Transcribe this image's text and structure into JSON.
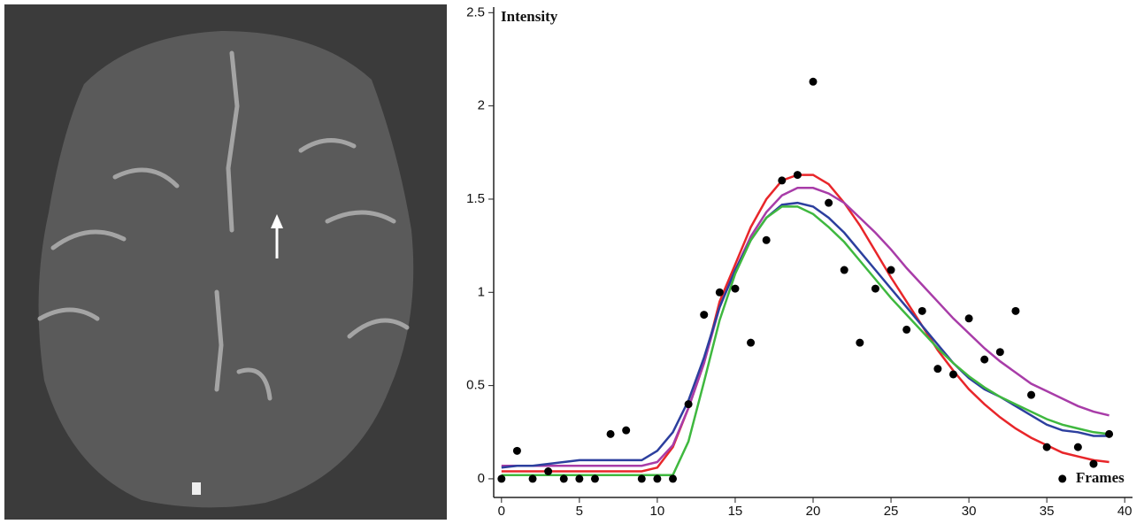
{
  "chart_data": {
    "type": "line",
    "ylabel": "Intensity",
    "xlabel": "Frames",
    "x": [
      0,
      1,
      2,
      3,
      4,
      5,
      6,
      7,
      8,
      9,
      10,
      11,
      12,
      13,
      14,
      15,
      16,
      17,
      18,
      19,
      20,
      21,
      22,
      23,
      24,
      25,
      26,
      27,
      28,
      29,
      30,
      31,
      32,
      33,
      34,
      35,
      36,
      37,
      38,
      39
    ],
    "points": {
      "color": "#000000",
      "values": [
        0,
        0.15,
        0,
        0.04,
        0,
        0,
        0,
        0.24,
        0.26,
        0,
        0,
        0,
        0.4,
        0.88,
        1.0,
        1.02,
        0.73,
        1.28,
        1.6,
        1.63,
        2.13,
        1.48,
        1.12,
        0.73,
        1.02,
        1.12,
        0.8,
        0.9,
        0.59,
        0.56,
        0.86,
        0.64,
        0.68,
        0.9,
        0.45,
        0.17,
        0,
        0.17,
        0.08,
        0.24
      ]
    },
    "series": [
      {
        "color": "#e8262a",
        "values": [
          0.04,
          0.04,
          0.04,
          0.04,
          0.04,
          0.04,
          0.04,
          0.04,
          0.04,
          0.04,
          0.06,
          0.17,
          0.38,
          0.62,
          0.95,
          1.15,
          1.35,
          1.5,
          1.6,
          1.63,
          1.63,
          1.58,
          1.48,
          1.36,
          1.22,
          1.08,
          0.95,
          0.82,
          0.69,
          0.58,
          0.48,
          0.4,
          0.33,
          0.27,
          0.22,
          0.18,
          0.14,
          0.12,
          0.1,
          0.09
        ]
      },
      {
        "color": "#a83ca8",
        "values": [
          0.07,
          0.07,
          0.07,
          0.07,
          0.07,
          0.07,
          0.07,
          0.07,
          0.07,
          0.07,
          0.09,
          0.18,
          0.38,
          0.62,
          0.92,
          1.12,
          1.3,
          1.43,
          1.52,
          1.56,
          1.56,
          1.53,
          1.48,
          1.4,
          1.32,
          1.23,
          1.13,
          1.04,
          0.95,
          0.86,
          0.78,
          0.7,
          0.63,
          0.57,
          0.51,
          0.47,
          0.43,
          0.39,
          0.36,
          0.34
        ]
      },
      {
        "color": "#2c3f9e",
        "values": [
          0.06,
          0.07,
          0.07,
          0.08,
          0.09,
          0.1,
          0.1,
          0.1,
          0.1,
          0.1,
          0.15,
          0.25,
          0.42,
          0.65,
          0.92,
          1.12,
          1.28,
          1.4,
          1.47,
          1.48,
          1.46,
          1.4,
          1.32,
          1.22,
          1.12,
          1.02,
          0.92,
          0.82,
          0.72,
          0.62,
          0.54,
          0.48,
          0.44,
          0.39,
          0.34,
          0.29,
          0.26,
          0.25,
          0.23,
          0.23
        ]
      },
      {
        "color": "#3fb83f",
        "values": [
          0.02,
          0.02,
          0.02,
          0.02,
          0.02,
          0.02,
          0.02,
          0.02,
          0.02,
          0.02,
          0.02,
          0.02,
          0.2,
          0.52,
          0.85,
          1.1,
          1.28,
          1.4,
          1.46,
          1.46,
          1.42,
          1.35,
          1.27,
          1.17,
          1.07,
          0.97,
          0.88,
          0.79,
          0.7,
          0.62,
          0.55,
          0.49,
          0.44,
          0.4,
          0.36,
          0.32,
          0.29,
          0.27,
          0.25,
          0.24
        ]
      }
    ],
    "xlim": [
      -0.5,
      40.5
    ],
    "ylim": [
      -0.1,
      2.53
    ],
    "xticks": [
      0,
      5,
      10,
      15,
      20,
      25,
      30,
      35,
      40
    ],
    "yticks": [
      0,
      0.5,
      1,
      1.5,
      2,
      2.5
    ]
  }
}
